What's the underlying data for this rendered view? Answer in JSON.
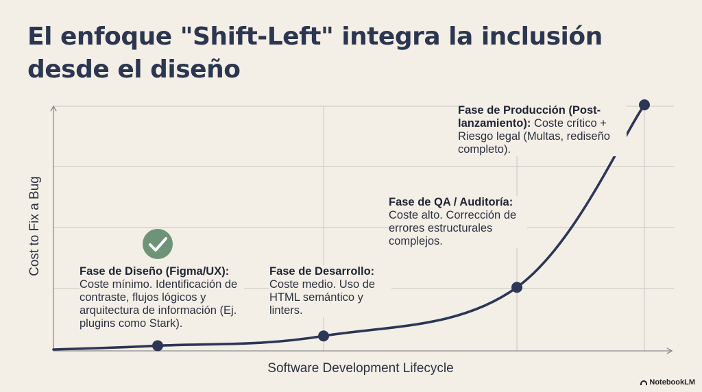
{
  "title": "El enfoque \"Shift-Left\" integra la inclusión desde el diseño",
  "watermark": "NotebookLM",
  "colors": {
    "background": "#f3efe6",
    "curve": "#2c3656",
    "grid": "#c9c6c0",
    "check": "#6e9478"
  },
  "chart_data": {
    "type": "line",
    "xlabel": "Software Development Lifecycle",
    "ylabel": "Cost to Fix a Bug",
    "grid": true,
    "series": [
      {
        "x": [
          "Fase de Diseño",
          "Fase de Desarrollo",
          "Fase de QA / Auditoría",
          "Fase de Producción"
        ],
        "values": [
          1,
          5,
          25,
          100
        ]
      }
    ],
    "annotations": [
      {
        "title": "Fase de Diseño (Figma/UX):",
        "text": "Coste mínimo. Identificación de contraste, flujos lógicos y arquitectura de información (Ej. plugins como Stark).",
        "icon": "check-circle-icon"
      },
      {
        "title": "Fase de Desarrollo:",
        "text": "Coste medio. Uso de HTML semántico y linters."
      },
      {
        "title": "Fase de QA / Auditoría:",
        "text": "Coste alto. Corrección de errores estructurales complejos."
      },
      {
        "title": "Fase de Producción (Post-lanzamiento):",
        "text": "Coste crítico + Riesgo legal (Multas, rediseño completo)."
      }
    ]
  }
}
